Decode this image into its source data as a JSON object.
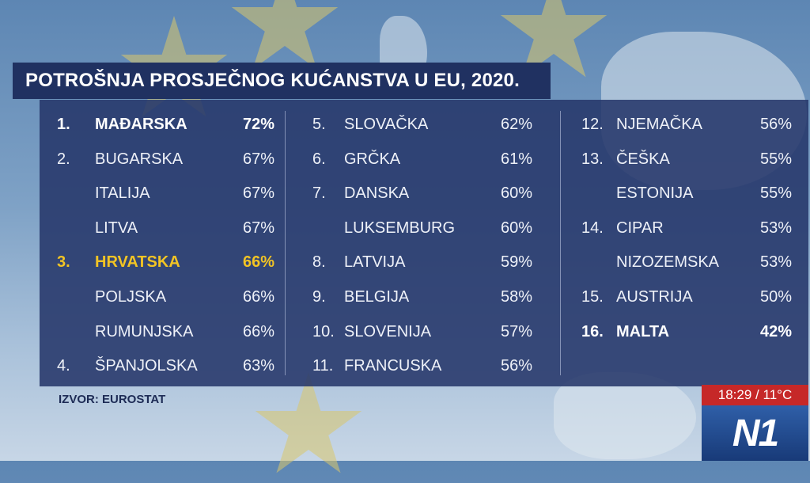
{
  "title": "POTROŠNJA PROSJEČNOG KUĆANSTVA U EU, 2020.",
  "source": "IZVOR: EUROSTAT",
  "broadcast": {
    "time": "18:29",
    "separator": "/",
    "temperature": "11°C",
    "logo": "N1"
  },
  "colors": {
    "panel": "#26376a",
    "title_bar": "#203161",
    "highlight": "#f2c424",
    "clock": "#c62828"
  },
  "columns": [
    [
      {
        "rank": "1.",
        "name": "MAĐARSKA",
        "pct": "72%",
        "style": "bold"
      },
      {
        "rank": "2.",
        "name": "BUGARSKA",
        "pct": "67%",
        "style": ""
      },
      {
        "rank": "",
        "name": "ITALIJA",
        "pct": "67%",
        "style": ""
      },
      {
        "rank": "",
        "name": "LITVA",
        "pct": "67%",
        "style": ""
      },
      {
        "rank": "3.",
        "name": "HRVATSKA",
        "pct": "66%",
        "style": "highlight"
      },
      {
        "rank": "",
        "name": "POLJSKA",
        "pct": "66%",
        "style": ""
      },
      {
        "rank": "",
        "name": "RUMUNJSKA",
        "pct": "66%",
        "style": ""
      },
      {
        "rank": "4.",
        "name": "ŠPANJOLSKA",
        "pct": "63%",
        "style": ""
      }
    ],
    [
      {
        "rank": "5.",
        "name": "SLOVAČKA",
        "pct": "62%",
        "style": ""
      },
      {
        "rank": "6.",
        "name": "GRČKA",
        "pct": "61%",
        "style": ""
      },
      {
        "rank": "7.",
        "name": "DANSKA",
        "pct": "60%",
        "style": ""
      },
      {
        "rank": "",
        "name": "LUKSEMBURG",
        "pct": "60%",
        "style": ""
      },
      {
        "rank": "8.",
        "name": "LATVIJA",
        "pct": "59%",
        "style": ""
      },
      {
        "rank": "9.",
        "name": "BELGIJA",
        "pct": "58%",
        "style": ""
      },
      {
        "rank": "10.",
        "name": "SLOVENIJA",
        "pct": "57%",
        "style": ""
      },
      {
        "rank": "11.",
        "name": "FRANCUSKA",
        "pct": "56%",
        "style": ""
      }
    ],
    [
      {
        "rank": "12.",
        "name": "NJEMAČKA",
        "pct": "56%",
        "style": ""
      },
      {
        "rank": "13.",
        "name": "ČEŠKA",
        "pct": "55%",
        "style": ""
      },
      {
        "rank": "",
        "name": "ESTONIJA",
        "pct": "55%",
        "style": ""
      },
      {
        "rank": "14.",
        "name": "CIPAR",
        "pct": "53%",
        "style": ""
      },
      {
        "rank": "",
        "name": "NIZOZEMSKA",
        "pct": "53%",
        "style": ""
      },
      {
        "rank": "15.",
        "name": "AUSTRIJA",
        "pct": "50%",
        "style": ""
      },
      {
        "rank": "16.",
        "name": "MALTA",
        "pct": "42%",
        "style": "bold"
      }
    ]
  ]
}
